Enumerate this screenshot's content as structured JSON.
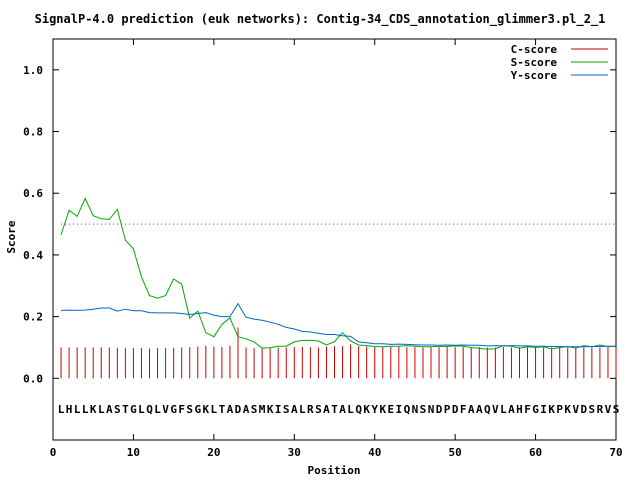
{
  "chart_data": {
    "type": "line",
    "title": "SignalP-4.0 prediction (euk networks): Contig-34_CDS_annotation_glimmer3.pl_2_1",
    "xlabel": "Position",
    "ylabel": "Score",
    "xlim": [
      0,
      70
    ],
    "ylim": [
      -0.2,
      1.1
    ],
    "x_ticks": [
      0,
      10,
      20,
      30,
      40,
      50,
      60,
      70
    ],
    "y_ticks": [
      0.0,
      0.2,
      0.4,
      0.6,
      0.8,
      1.0
    ],
    "x_tick_labels": [
      "0",
      "10",
      "20",
      "30",
      "40",
      "50",
      "60",
      "70"
    ],
    "y_tick_labels": [
      "0.0",
      "0.2",
      "0.4",
      "0.6",
      "0.8",
      "1.0"
    ],
    "threshold": 0.5,
    "legend_position": "top-right",
    "sequence": "LHLLKLASTGLQLVGFSGKLTADASMKISALRSATALQKYKEIQNSNDPDFAAQVLAHFGIKPKVDSRVS",
    "colors": {
      "c_score": "#cc0000",
      "s_score": "#00aa00",
      "y_score": "#0066cc",
      "threshold": "#cc00cc"
    },
    "series": [
      {
        "name": "C-score",
        "style": "impulses",
        "values": [
          0.1,
          0.1,
          0.1,
          0.1,
          0.1,
          0.1,
          0.1,
          0.099,
          0.099,
          0.098,
          0.098,
          0.097,
          0.098,
          0.098,
          0.099,
          0.1,
          0.101,
          0.103,
          0.105,
          0.103,
          0.101,
          0.106,
          0.165,
          0.1,
          0.099,
          0.098,
          0.098,
          0.1,
          0.1,
          0.101,
          0.102,
          0.101,
          0.1,
          0.103,
          0.104,
          0.104,
          0.11,
          0.104,
          0.103,
          0.102,
          0.101,
          0.102,
          0.102,
          0.101,
          0.101,
          0.1,
          0.101,
          0.101,
          0.101,
          0.101,
          0.101,
          0.1,
          0.101,
          0.1,
          0.1,
          0.101,
          0.1,
          0.101,
          0.1,
          0.1,
          0.1,
          0.1,
          0.1,
          0.1,
          0.099,
          0.1,
          0.1,
          0.1,
          0.1,
          0.1
        ]
      },
      {
        "name": "S-score",
        "style": "line",
        "values": [
          0.465,
          0.545,
          0.525,
          0.583,
          0.527,
          0.517,
          0.515,
          0.548,
          0.448,
          0.42,
          0.328,
          0.268,
          0.26,
          0.268,
          0.322,
          0.305,
          0.195,
          0.218,
          0.148,
          0.135,
          0.175,
          0.196,
          0.135,
          0.128,
          0.118,
          0.098,
          0.099,
          0.104,
          0.104,
          0.118,
          0.123,
          0.123,
          0.121,
          0.108,
          0.119,
          0.148,
          0.121,
          0.108,
          0.106,
          0.103,
          0.102,
          0.104,
          0.104,
          0.106,
          0.104,
          0.102,
          0.102,
          0.104,
          0.103,
          0.105,
          0.104,
          0.1,
          0.097,
          0.094,
          0.096,
          0.106,
          0.104,
          0.098,
          0.102,
          0.1,
          0.102,
          0.095,
          0.1,
          0.103,
          0.098,
          0.106,
          0.102,
          0.108,
          0.102,
          0.104
        ]
      },
      {
        "name": "Y-score",
        "style": "line",
        "values": [
          0.22,
          0.221,
          0.22,
          0.221,
          0.224,
          0.228,
          0.228,
          0.218,
          0.224,
          0.219,
          0.219,
          0.213,
          0.212,
          0.212,
          0.212,
          0.21,
          0.207,
          0.21,
          0.213,
          0.205,
          0.2,
          0.2,
          0.242,
          0.198,
          0.192,
          0.188,
          0.182,
          0.175,
          0.165,
          0.16,
          0.152,
          0.15,
          0.146,
          0.142,
          0.142,
          0.138,
          0.136,
          0.118,
          0.115,
          0.112,
          0.112,
          0.11,
          0.111,
          0.11,
          0.109,
          0.108,
          0.108,
          0.107,
          0.108,
          0.107,
          0.108,
          0.107,
          0.107,
          0.105,
          0.106,
          0.105,
          0.106,
          0.105,
          0.105,
          0.104,
          0.104,
          0.103,
          0.103,
          0.102,
          0.102,
          0.102,
          0.103,
          0.103,
          0.104,
          0.104
        ]
      }
    ]
  }
}
